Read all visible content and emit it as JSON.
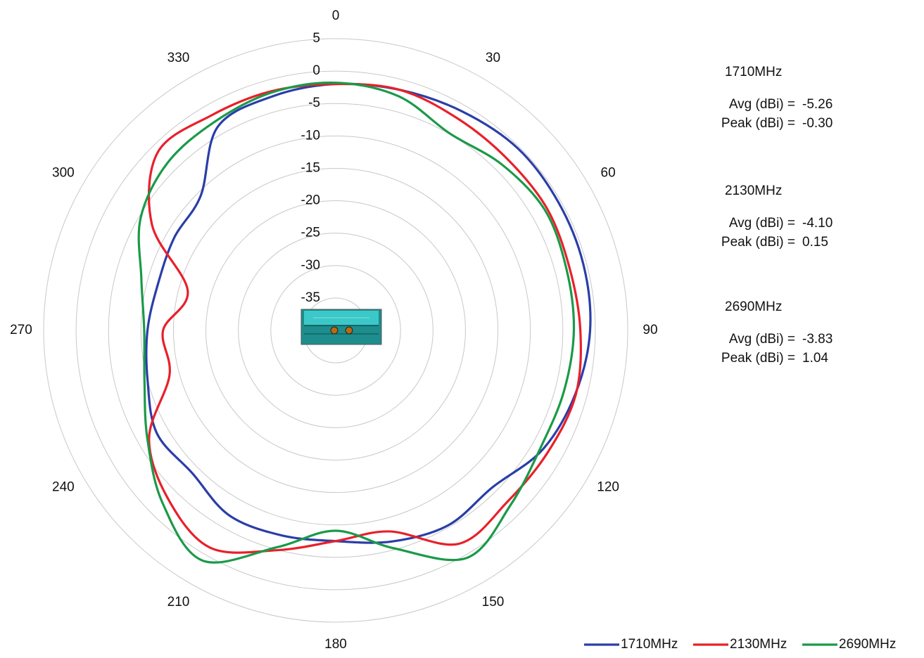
{
  "chart_data": {
    "type": "polar",
    "theta": [
      0,
      15,
      30,
      45,
      60,
      75,
      90,
      105,
      120,
      135,
      150,
      165,
      180,
      195,
      210,
      225,
      240,
      255,
      270,
      285,
      300,
      315,
      330,
      345
    ],
    "thetaticks": [
      0,
      30,
      60,
      90,
      120,
      150,
      180,
      210,
      240,
      270,
      300,
      330
    ],
    "rlim": [
      -40,
      5
    ],
    "rticks": [
      -35,
      -30,
      -25,
      -20,
      -15,
      -10,
      -5,
      0,
      5
    ],
    "grid": true,
    "legend": "bottom-right",
    "series": [
      {
        "name": "1710MHz",
        "color": "#2a3ea8",
        "values": [
          -2.0,
          -1.6,
          -1.0,
          -0.3,
          -0.4,
          -0.5,
          -0.8,
          -1.8,
          -3.2,
          -5.8,
          -5.3,
          -6.3,
          -7.5,
          -7.3,
          -7.1,
          -8.8,
          -8.2,
          -10.0,
          -11.0,
          -11.7,
          -11.3,
          -10.6,
          -3.7,
          -2.6
        ]
      },
      {
        "name": "2130MHz",
        "color": "#e8202a",
        "values": [
          -2.0,
          -1.6,
          -2.3,
          -2.6,
          -2.4,
          -2.7,
          -2.3,
          -1.7,
          -2.3,
          -2.6,
          -2.0,
          -7.9,
          -7.5,
          -4.9,
          -1.3,
          -3.4,
          -6.8,
          -13.5,
          -13.4,
          -16.4,
          -7.3,
          -1.2,
          -1.7,
          -1.8
        ]
      },
      {
        "name": "2690MHz",
        "color": "#1a9a48",
        "values": [
          -1.8,
          -2.6,
          -4.9,
          -3.8,
          -2.8,
          -3.2,
          -3.3,
          -3.6,
          -3.6,
          -1.9,
          0.5,
          -5.2,
          -9.1,
          -5.4,
          1.0,
          -2.3,
          -6.5,
          -9.5,
          -10.5,
          -9.0,
          -5.3,
          -3.4,
          -2.8,
          -2.0
        ]
      }
    ],
    "stats": [
      {
        "name": "1710MHz",
        "avg_label": "Avg (dBi) =",
        "avg": -5.26,
        "peak_label": "Peak (dBi) =",
        "peak": {
          "value": -0.3,
          "label": "-0.30"
        }
      },
      {
        "name": "2130MHz",
        "avg_label": "Avg (dBi) =",
        "avg": {
          "value": -4.1,
          "label": "-4.10"
        },
        "peak_label": "Peak (dBi) =",
        "peak": 0.15
      },
      {
        "name": "2690MHz",
        "avg_label": "Avg (dBi) =",
        "avg": -3.83,
        "peak_label": "Peak (dBi) =",
        "peak": 1.04
      }
    ]
  }
}
